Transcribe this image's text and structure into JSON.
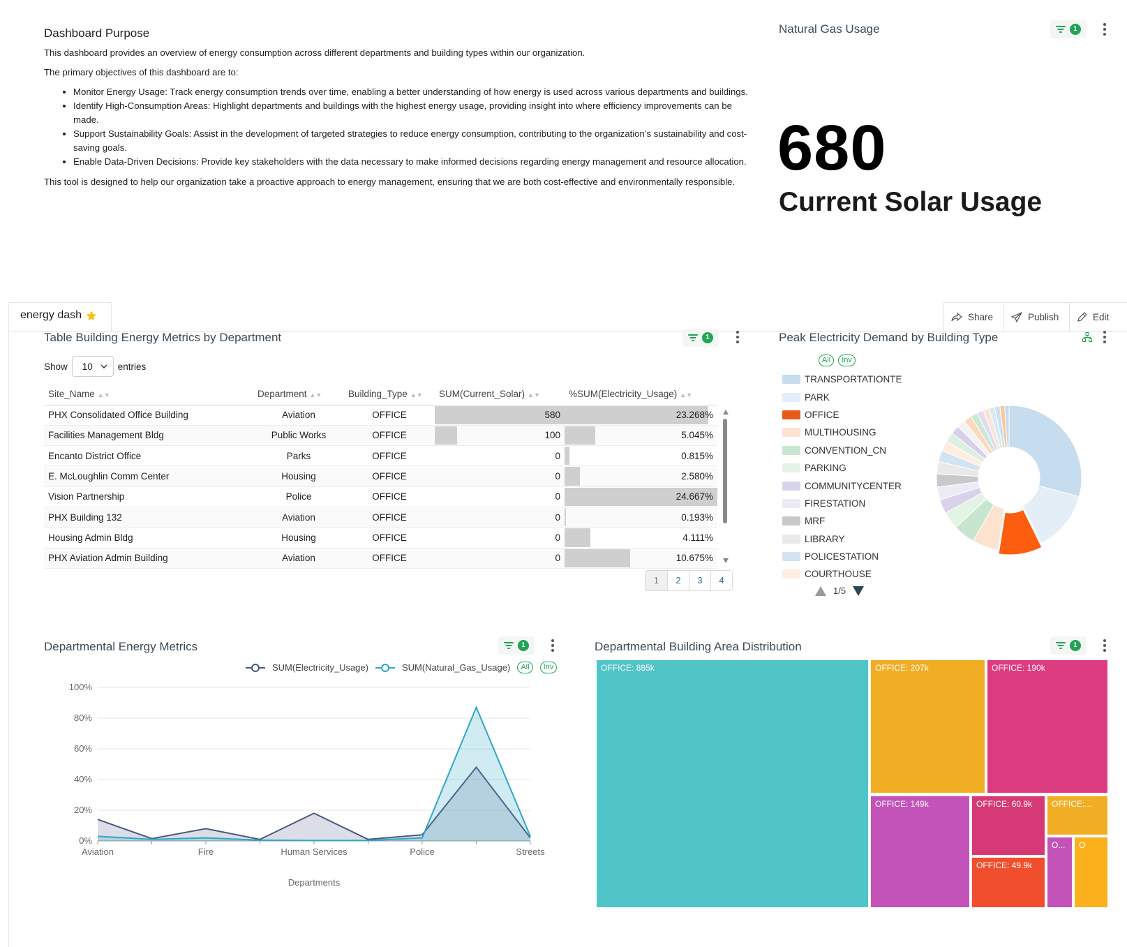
{
  "purpose": {
    "title": "Dashboard Purpose",
    "intro": "This dashboard provides an overview of energy consumption across different departments and building types within our organization.",
    "objectives_heading": "The primary objectives of this dashboard are to:",
    "objectives": [
      "Monitor Energy Usage: Track energy consumption trends over time, enabling a better understanding of how energy is used across various departments and buildings.",
      "Identify High-Consumption Areas: Highlight departments and buildings with the highest energy usage, providing insight into where efficiency improvements can be made.",
      "Support Sustainability Goals: Assist in the development of targeted strategies to reduce energy consumption, contributing to the organization’s sustainability and cost-saving goals.",
      "Enable Data-Driven Decisions: Provide key stakeholders with the data necessary to make informed decisions regarding energy management and resource allocation."
    ],
    "closing": "This tool is designed to help our organization take a proactive approach to energy management, ensuring that we are both cost-effective and environmentally responsible."
  },
  "big_number": {
    "panel_title": "Natural Gas Usage",
    "filter_count": "1",
    "value": "680",
    "subheader": "Current Solar Usage"
  },
  "header": {
    "dashboard_title": "energy dash",
    "share_label": "Share",
    "publish_label": "Publish",
    "edit_label": "Edit"
  },
  "table_panel": {
    "title": "Table Building Energy Metrics by Department",
    "filter_count": "1",
    "show_label": "Show",
    "entries_value": "10",
    "entries_label": "entries",
    "columns": [
      "Site_Name",
      "Department",
      "Building_Type",
      "SUM(Current_Solar)",
      "%SUM(Electricity_Usage)"
    ],
    "rows": [
      {
        "site": "PHX Consolidated Office Building",
        "dept": "Aviation",
        "type": "OFFICE",
        "solar": "580",
        "solar_frac": 1.0,
        "pct": "23.268%",
        "pct_frac": 0.94
      },
      {
        "site": "Facilities Management Bldg",
        "dept": "Public Works",
        "type": "OFFICE",
        "solar": "100",
        "solar_frac": 0.17,
        "pct": "5.045%",
        "pct_frac": 0.2
      },
      {
        "site": "Encanto District Office",
        "dept": "Parks",
        "type": "OFFICE",
        "solar": "0",
        "solar_frac": 0,
        "pct": "0.815%",
        "pct_frac": 0.03
      },
      {
        "site": "E. McLoughlin Comm Center",
        "dept": "Housing",
        "type": "OFFICE",
        "solar": "0",
        "solar_frac": 0,
        "pct": "2.580%",
        "pct_frac": 0.1
      },
      {
        "site": "Vision Partnership",
        "dept": "Police",
        "type": "OFFICE",
        "solar": "0",
        "solar_frac": 0,
        "pct": "24.667%",
        "pct_frac": 1.0
      },
      {
        "site": "PHX Building 132",
        "dept": "Aviation",
        "type": "OFFICE",
        "solar": "0",
        "solar_frac": 0,
        "pct": "0.193%",
        "pct_frac": 0.01
      },
      {
        "site": "Housing Admin Bldg",
        "dept": "Housing",
        "type": "OFFICE",
        "solar": "0",
        "solar_frac": 0,
        "pct": "4.111%",
        "pct_frac": 0.17
      },
      {
        "site": "PHX Aviation Admin Building",
        "dept": "Aviation",
        "type": "OFFICE",
        "solar": "0",
        "solar_frac": 0,
        "pct": "10.675%",
        "pct_frac": 0.43
      }
    ],
    "pages": [
      "1",
      "2",
      "3",
      "4"
    ]
  },
  "pie_panel": {
    "title": "Peak Electricity Demand by Building Type",
    "all_label": "All",
    "inv_label": "Inv",
    "legend": [
      {
        "name": "TRANSPORTATIONTE",
        "color": "#c6dcef"
      },
      {
        "name": "PARK",
        "color": "#e3eef7"
      },
      {
        "name": "OFFICE",
        "color": "#e8591a"
      },
      {
        "name": "MULTIHOUSING",
        "color": "#fde3cf"
      },
      {
        "name": "CONVENTION_CN",
        "color": "#c8e6cf"
      },
      {
        "name": "PARKING",
        "color": "#e3f3e6"
      },
      {
        "name": "COMMUNITYCENTER",
        "color": "#d8d3ea"
      },
      {
        "name": "FIRESTATION",
        "color": "#ecebf5"
      },
      {
        "name": "MRF",
        "color": "#c9c9c9"
      },
      {
        "name": "LIBRARY",
        "color": "#e9e9e9"
      },
      {
        "name": "POLICESTATION",
        "color": "#d2e4f2"
      },
      {
        "name": "COURTHOUSE",
        "color": "#fdeee0"
      }
    ],
    "page_indicator": "1/5"
  },
  "line_panel": {
    "title": "Departmental Energy Metrics",
    "filter_count": "1",
    "series_names": [
      "SUM(Electricity_Usage)",
      "SUM(Natural_Gas_Usage)"
    ],
    "all_label": "All",
    "inv_label": "Inv"
  },
  "treemap_panel": {
    "title": "Departmental Building Area Distribution",
    "filter_count": "1",
    "cells": [
      {
        "label": "OFFICE: 885k",
        "color": "#4fc5c7"
      },
      {
        "label": "OFFICE: 207k",
        "color": "#f1ae25"
      },
      {
        "label": "OFFICE: 190k",
        "color": "#dd3b80"
      },
      {
        "label": "OFFICE: 149k",
        "color": "#c453b9"
      },
      {
        "label": "OFFICE: 60.9k",
        "color": "#d63a76"
      },
      {
        "label": "OFFICE:...",
        "color": "#f1ae25"
      },
      {
        "label": "OFFICE: 49.9k",
        "color": "#f04e2d"
      },
      {
        "label": "O...",
        "color": "#c453b9"
      },
      {
        "label": "O",
        "color": "#fbb11b"
      }
    ]
  },
  "chart_data": {
    "type": "area",
    "categories": [
      "Aviation",
      "",
      "Fire",
      "",
      "Human Services",
      "",
      "Police",
      "",
      "Streets"
    ],
    "xlabel": "Departments",
    "ylabel": "",
    "yticks": [
      "0%",
      "20%",
      "40%",
      "60%",
      "80%",
      "100%"
    ],
    "ylim": [
      0,
      100
    ],
    "legend_position": "top-right",
    "series": [
      {
        "name": "SUM(Electricity_Usage)",
        "color": "#4b5880",
        "values": [
          14,
          1.5,
          8,
          1,
          18,
          1,
          4,
          48,
          2
        ]
      },
      {
        "name": "SUM(Natural_Gas_Usage)",
        "color": "#2fa6c8",
        "values": [
          3,
          1,
          2,
          0.5,
          0.3,
          0.3,
          2,
          87,
          3
        ]
      }
    ]
  }
}
